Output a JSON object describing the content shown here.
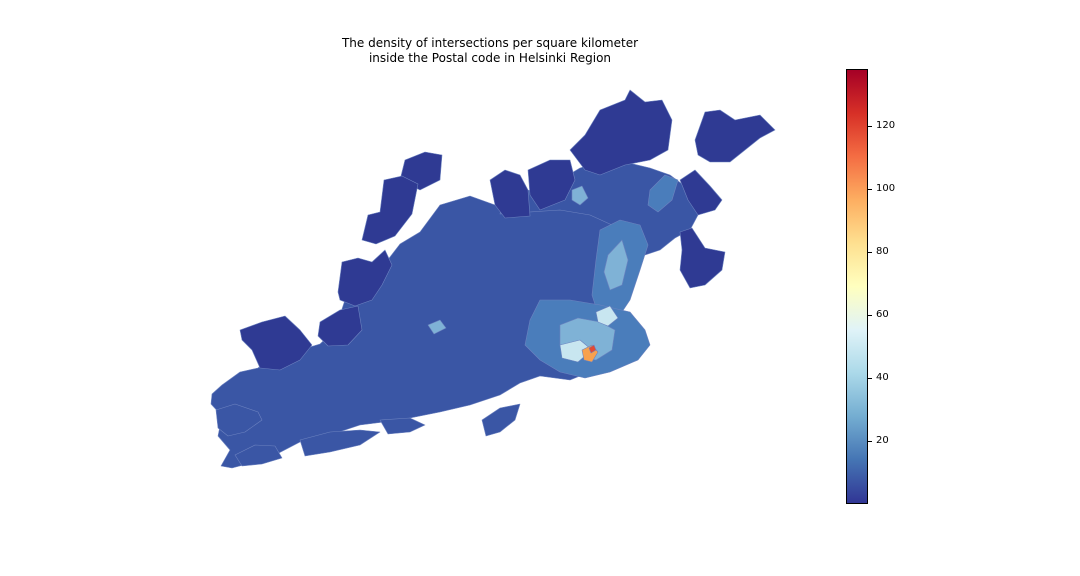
{
  "title": {
    "line1": "The density of intersections per square kilometer",
    "line2": "inside the Postal code in Helsinki Region"
  },
  "colorbar": {
    "colormap": "RdYlBu_r",
    "min": 0,
    "max": 138,
    "ticks": [
      "20",
      "40",
      "60",
      "80",
      "100",
      "120"
    ],
    "tick_values": [
      20,
      40,
      60,
      80,
      100,
      120
    ],
    "stops": [
      "#313695",
      "#4575b4",
      "#74add1",
      "#abd9e9",
      "#e0f3f8",
      "#ffffbf",
      "#fee090",
      "#fdae61",
      "#f46d43",
      "#d73027",
      "#a50026"
    ]
  },
  "map_colors": {
    "outer_regions": "#2f3a93",
    "main_regions": "#3a56a5",
    "urban_mid": "#4a7dbb",
    "urban_light": "#7fb2d6",
    "urban_pale": "#c8e6f0",
    "center_hot": "#f7a14e",
    "center_peak": "#e24a33",
    "borders": "#6d83c0"
  }
}
